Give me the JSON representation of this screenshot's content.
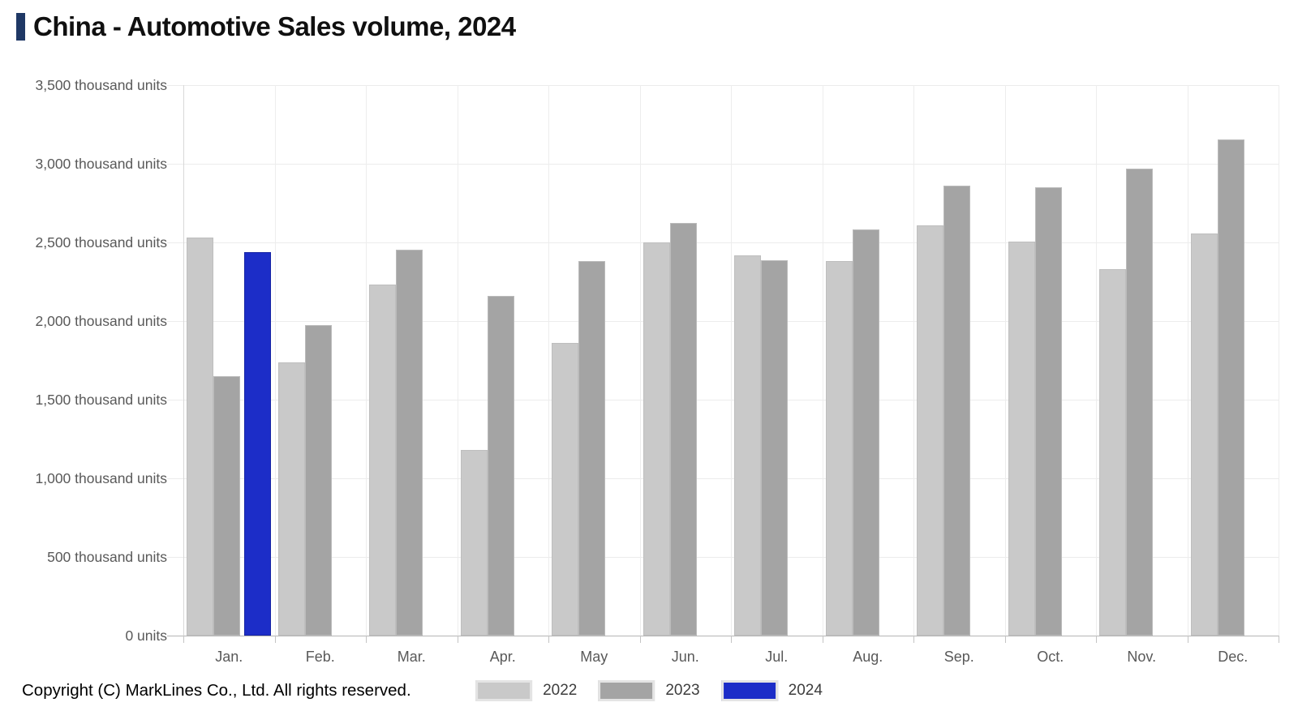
{
  "page": {
    "title": "China - Automotive Sales volume, 2024",
    "copyright": "Copyright (C) MarkLines Co., Ltd. All rights reserved."
  },
  "colors": {
    "accent_navy": "#1f3865",
    "series_2022": "#c9c9c9",
    "series_2023": "#a4a4a4",
    "series_2024": "#1c2dc8",
    "gridline": "#ececec",
    "axis_text": "#595959"
  },
  "chart_data": {
    "type": "bar",
    "title": "China - Automotive Sales volume, 2024",
    "unit": "thousand units",
    "categories": [
      "Jan.",
      "Feb.",
      "Mar.",
      "Apr.",
      "May",
      "Jun.",
      "Jul.",
      "Aug.",
      "Sep.",
      "Oct.",
      "Nov.",
      "Dec."
    ],
    "series": [
      {
        "name": "2022",
        "color": "#c9c9c9",
        "values": [
          2531,
          1737,
          2234,
          1181,
          1862,
          2502,
          2420,
          2383,
          2610,
          2505,
          2328,
          2556
        ]
      },
      {
        "name": "2023",
        "color": "#a4a4a4",
        "values": [
          1649,
          1976,
          2452,
          2159,
          2382,
          2622,
          2389,
          2580,
          2859,
          2853,
          2970,
          3156
        ]
      },
      {
        "name": "2024",
        "color": "#1c2dc8",
        "values": [
          2439,
          null,
          null,
          null,
          null,
          null,
          null,
          null,
          null,
          null,
          null,
          null
        ]
      }
    ],
    "ylim": [
      0,
      3500
    ],
    "ytick_step": 500,
    "ytick_labels": [
      "0 units",
      "500 thousand units",
      "1,000 thousand units",
      "1,500 thousand units",
      "2,000 thousand units",
      "2,500 thousand units",
      "3,000 thousand units",
      "3,500 thousand units"
    ],
    "grid": true,
    "legend_position": "bottom"
  }
}
